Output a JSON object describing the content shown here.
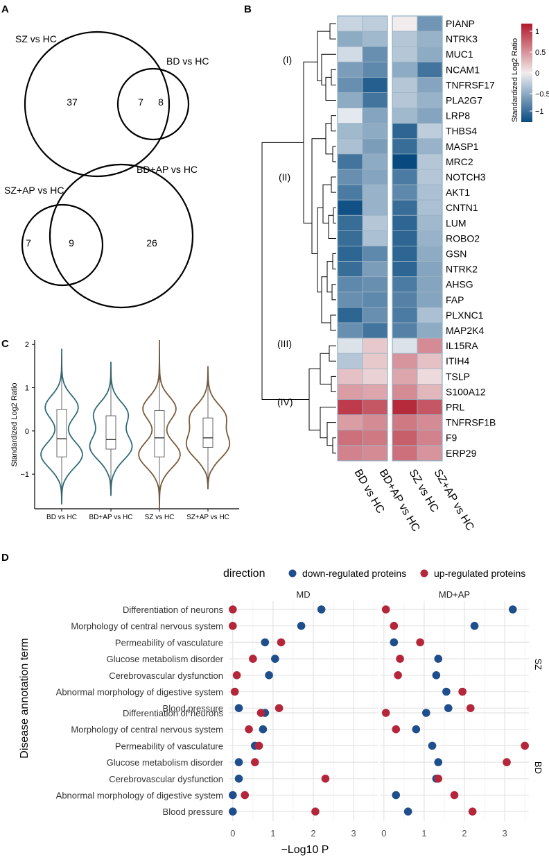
{
  "panels": {
    "a": "A",
    "b": "B",
    "c": "C",
    "d": "D"
  },
  "venn": {
    "top": {
      "left_label": "SZ vs HC",
      "right_label": "BD vs HC",
      "left_only": "37",
      "overlap": "7",
      "right_only": "8"
    },
    "bottom": {
      "left_label": "SZ+AP vs HC",
      "right_label": "BD+AP vs HC",
      "left_only": "7",
      "overlap": "9",
      "right_only": "26"
    }
  },
  "chart_data": [
    {
      "type": "heatmap",
      "panel": "B",
      "rows": [
        "PIANP",
        "NTRK3",
        "MUC1",
        "NCAM1",
        "TNFRSF17",
        "PLA2G7",
        "LRP8",
        "THBS4",
        "MASP1",
        "MRC2",
        "NOTCH3",
        "AKT1",
        "CNTN1",
        "LUM",
        "ROBO2",
        "GSN",
        "NTRK2",
        "AHSG",
        "FAP",
        "PLXNC1",
        "MAP2K4",
        "IL15RA",
        "ITIH4",
        "TSLP",
        "S100A12",
        "PRL",
        "TNFRSF1B",
        "F9",
        "ERP29"
      ],
      "columns": [
        "BD vs HC",
        "BD+AP vs HC",
        "SZ vs HC",
        "SZ+AP vs HC"
      ],
      "values": [
        [
          -0.2,
          -0.25,
          0.0,
          -0.65
        ],
        [
          -0.5,
          -0.4,
          -0.3,
          -0.45
        ],
        [
          -0.15,
          -0.7,
          -0.3,
          -0.5
        ],
        [
          -0.6,
          -0.75,
          -0.5,
          -0.9
        ],
        [
          -0.7,
          -1.05,
          -0.3,
          -0.55
        ],
        [
          -0.5,
          -0.9,
          -0.3,
          -0.45
        ],
        [
          -0.05,
          -0.55,
          -0.4,
          -0.55
        ],
        [
          -0.4,
          -0.5,
          -1.0,
          -0.25
        ],
        [
          -0.35,
          -0.6,
          -0.95,
          -0.45
        ],
        [
          -0.9,
          -0.5,
          -1.2,
          -0.3
        ],
        [
          -0.7,
          -0.55,
          -0.85,
          -0.3
        ],
        [
          -0.85,
          -0.45,
          -0.75,
          -0.35
        ],
        [
          -1.15,
          -0.45,
          -0.95,
          -0.35
        ],
        [
          -0.95,
          -0.3,
          -1.0,
          -0.4
        ],
        [
          -0.95,
          -0.35,
          -1.0,
          -0.45
        ],
        [
          -1.0,
          -0.75,
          -1.0,
          -0.5
        ],
        [
          -0.95,
          -0.6,
          -1.0,
          -0.55
        ],
        [
          -0.75,
          -0.7,
          -0.85,
          -0.55
        ],
        [
          -0.7,
          -0.75,
          -0.8,
          -0.55
        ],
        [
          -1.0,
          -0.7,
          -0.85,
          -0.35
        ],
        [
          -0.7,
          -0.9,
          -0.8,
          -0.5
        ],
        [
          -0.1,
          0.2,
          -0.1,
          0.55
        ],
        [
          -0.3,
          0.2,
          0.5,
          0.25
        ],
        [
          0.25,
          0.15,
          0.4,
          0.1
        ],
        [
          0.45,
          0.4,
          0.55,
          0.3
        ],
        [
          1.0,
          0.85,
          1.1,
          0.85
        ],
        [
          0.45,
          0.55,
          0.65,
          0.55
        ],
        [
          0.7,
          0.65,
          0.8,
          0.6
        ],
        [
          0.6,
          0.55,
          0.7,
          0.5
        ]
      ],
      "legend": {
        "title": "Standardized Log2 Ratio",
        "ticks": [
          "1",
          "0.5",
          "0",
          "−0.5",
          "−1"
        ],
        "range": [
          -1.2,
          1.2
        ]
      },
      "clusters": [
        "(I)",
        "(II)",
        "(III)",
        "(IV)"
      ]
    },
    {
      "type": "violin",
      "panel": "C",
      "categories": [
        "BD vs HC",
        "BD+AP vs HC",
        "SZ vs HC",
        "SZ+AP vs HC"
      ],
      "colors": [
        "#2e6b7a",
        "#2e6b7a",
        "#7a5a3a",
        "#7a5a3a"
      ],
      "ylabel": "Standardized Log2 Ratio",
      "ylim": [
        -1.8,
        2.1
      ],
      "yticks": [
        "2",
        "1",
        "0",
        "−1"
      ],
      "box": [
        {
          "q1": -0.6,
          "median": -0.18,
          "q3": 0.5,
          "wlo": -1.55,
          "whi": 1.75
        },
        {
          "q1": -0.42,
          "median": -0.2,
          "q3": 0.35,
          "wlo": -1.35,
          "whi": 1.45
        },
        {
          "q1": -0.6,
          "median": -0.16,
          "q3": 0.47,
          "wlo": -1.65,
          "whi": 1.95
        },
        {
          "q1": -0.38,
          "median": -0.16,
          "q3": 0.3,
          "wlo": -1.2,
          "whi": 1.35
        }
      ]
    },
    {
      "type": "scatter",
      "panel": "D",
      "legend_title": "direction",
      "legend": [
        "down-regulated proteins",
        "up-regulated proteins"
      ],
      "colors": {
        "down": "#1f4e8c",
        "up": "#b5263a"
      },
      "facet_cols": [
        "MD",
        "MD+AP"
      ],
      "facet_rows": [
        "SZ",
        "BD"
      ],
      "terms": [
        "Differentiation of neurons",
        "Morphology of central nervous system",
        "Permeability of vasculature",
        "Glucose metabolism disorder",
        "Cerebrovascular dysfunction",
        "Abnormal morphology of digestive system",
        "Blood pressure"
      ],
      "ylabel": "Disease annotation term",
      "xlabel": "−Log10 P",
      "xticks": [
        "0",
        "1",
        "2",
        "3"
      ],
      "xlim": [
        -0.1,
        3.6
      ],
      "panels": [
        {
          "row": "SZ",
          "col": "MD",
          "down": [
            2.2,
            1.7,
            0.8,
            1.05,
            0.9,
            null,
            0.15
          ],
          "up": [
            0.0,
            0.0,
            1.2,
            0.5,
            0.1,
            0.05,
            1.15
          ]
        },
        {
          "row": "SZ",
          "col": "MD+AP",
          "down": [
            3.2,
            2.25,
            0.25,
            1.35,
            1.3,
            1.55,
            1.6
          ],
          "up": [
            0.05,
            0.25,
            0.9,
            0.4,
            0.35,
            1.95,
            2.15
          ]
        },
        {
          "row": "BD",
          "col": "MD",
          "down": [
            0.8,
            0.75,
            0.55,
            0.15,
            0.15,
            0.0,
            0.0
          ],
          "up": [
            0.7,
            0.4,
            0.65,
            0.55,
            2.3,
            0.3,
            2.05
          ]
        },
        {
          "row": "BD",
          "col": "MD+AP",
          "down": [
            1.05,
            0.8,
            1.2,
            1.35,
            1.3,
            0.3,
            0.6
          ],
          "up": [
            0.05,
            0.3,
            3.5,
            3.05,
            1.35,
            1.75,
            2.2
          ]
        }
      ]
    }
  ]
}
